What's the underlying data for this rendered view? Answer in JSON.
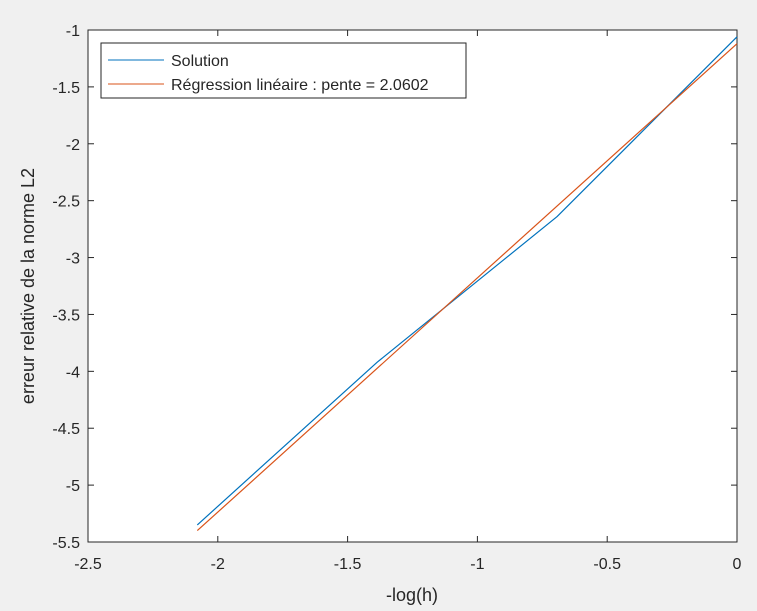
{
  "chart_data": {
    "type": "line",
    "title": "",
    "xlabel": "-log(h)",
    "ylabel": "erreur relative de la norme L2",
    "xlim": [
      -2.5,
      0
    ],
    "ylim": [
      -5.5,
      -1
    ],
    "xticks": [
      -2.5,
      -2,
      -1.5,
      -1,
      -0.5,
      0
    ],
    "yticks": [
      -1,
      -1.5,
      -2,
      -2.5,
      -3,
      -3.5,
      -4,
      -4.5,
      -5,
      -5.5
    ],
    "xtick_labels": [
      "-2.5",
      "-2",
      "-1.5",
      "-1",
      "-0.5",
      "0"
    ],
    "ytick_labels": [
      "-1",
      "-1.5",
      "-2",
      "-2.5",
      "-3",
      "-3.5",
      "-4",
      "-4.5",
      "-5",
      "-5.5"
    ],
    "grid": false,
    "legend_position": "top-left",
    "series": [
      {
        "name": "Solution",
        "color": "#0072BD",
        "x": [
          -2.079,
          -1.386,
          -0.693,
          0
        ],
        "y": [
          -5.35,
          -3.92,
          -2.64,
          -1.06
        ]
      },
      {
        "name": "Régression linéaire : pente = 2.0602",
        "color": "#D95319",
        "x": [
          -2.079,
          0
        ],
        "y": [
          -5.4,
          -1.12
        ]
      }
    ]
  }
}
